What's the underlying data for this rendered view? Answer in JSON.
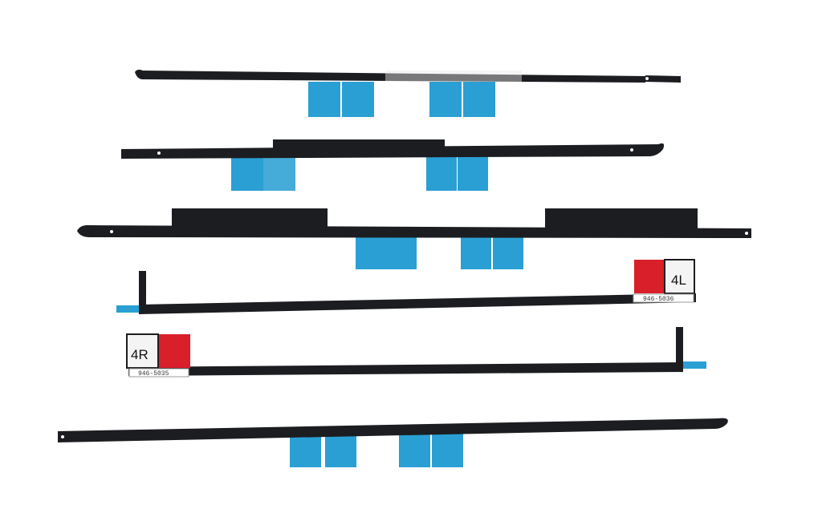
{
  "photo": {
    "background": "#ffffff",
    "strip_color": "#1c1d20",
    "tab_color": "#2a9fd4",
    "tag_red": "#d81f2a",
    "tag_white": "#f4f4f4"
  },
  "labels": {
    "left_tag": "4L",
    "left_code": "946-5036",
    "right_tag": "4R",
    "right_code": "946-5035"
  }
}
